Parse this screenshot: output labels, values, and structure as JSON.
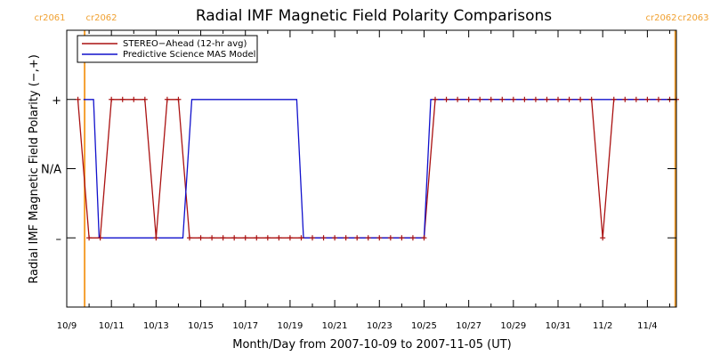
{
  "chart_data": {
    "type": "line",
    "title": "Radial IMF Magnetic Field Polarity Comparisons",
    "xlabel": "Month/Day from 2007-10-09 to 2007-11-05 (UT)",
    "ylabel": "Radial IMF Magnetic Field Polarity (−,+)",
    "xlim": [
      0,
      27.3
    ],
    "ylim": [
      -2,
      2
    ],
    "x_ticks": [
      {
        "x": 0,
        "label": "10/9"
      },
      {
        "x": 2,
        "label": "10/11"
      },
      {
        "x": 4,
        "label": "10/13"
      },
      {
        "x": 6,
        "label": "10/15"
      },
      {
        "x": 8,
        "label": "10/17"
      },
      {
        "x": 10,
        "label": "10/19"
      },
      {
        "x": 12,
        "label": "10/21"
      },
      {
        "x": 14,
        "label": "10/23"
      },
      {
        "x": 16,
        "label": "10/25"
      },
      {
        "x": 18,
        "label": "10/27"
      },
      {
        "x": 20,
        "label": "10/29"
      },
      {
        "x": 22,
        "label": "10/31"
      },
      {
        "x": 24,
        "label": "11/2"
      },
      {
        "x": 26,
        "label": "11/4"
      }
    ],
    "y_ticks": [
      {
        "y": 1,
        "label": "+"
      },
      {
        "y": 0,
        "label": "N/A"
      },
      {
        "y": -1,
        "label": "–"
      }
    ],
    "grid": false,
    "legend_position": "top-left",
    "carrington_markers": [
      {
        "x": 0.8,
        "left_label": "cr2061",
        "right_label": "cr2062"
      },
      {
        "x": 27.25,
        "left_label": "cr2062",
        "right_label": "cr2063"
      }
    ],
    "series": [
      {
        "name": "STEREO−Ahead (12-hr avg)",
        "color": "#aa1111",
        "markers": true,
        "x": [
          0.5,
          1.0,
          1.5,
          2.0,
          2.5,
          3.0,
          3.5,
          4.0,
          4.5,
          5.0,
          5.5,
          6.0,
          6.5,
          7.0,
          7.5,
          8.0,
          8.5,
          9.0,
          9.5,
          10.0,
          10.5,
          11.0,
          11.5,
          12.0,
          12.5,
          13.0,
          13.5,
          14.0,
          14.5,
          15.0,
          15.5,
          16.0,
          16.5,
          17.0,
          17.5,
          18.0,
          18.5,
          19.0,
          19.5,
          20.0,
          20.5,
          21.0,
          21.5,
          22.0,
          22.5,
          23.0,
          23.5,
          24.0,
          24.5,
          25.0,
          25.5,
          26.0,
          26.5,
          27.0,
          27.3
        ],
        "y": [
          1,
          -1,
          -1,
          1,
          1,
          1,
          1,
          -1,
          1,
          1,
          -1,
          -1,
          -1,
          -1,
          -1,
          -1,
          -1,
          -1,
          -1,
          -1,
          -1,
          -1,
          -1,
          -1,
          -1,
          -1,
          -1,
          -1,
          -1,
          -1,
          -1,
          -1,
          1,
          1,
          1,
          1,
          1,
          1,
          1,
          1,
          1,
          1,
          1,
          1,
          1,
          1,
          1,
          -1,
          1,
          1,
          1,
          1,
          1,
          1,
          1
        ]
      },
      {
        "name": "Predictive Science MAS Model",
        "color": "#1111cc",
        "markers": false,
        "x": [
          0.75,
          1.2,
          1.45,
          5.2,
          5.6,
          10.3,
          10.6,
          16.0,
          16.3,
          27.3
        ],
        "y": [
          1,
          1,
          -1,
          -1,
          1,
          1,
          -1,
          -1,
          1,
          1
        ]
      }
    ]
  }
}
